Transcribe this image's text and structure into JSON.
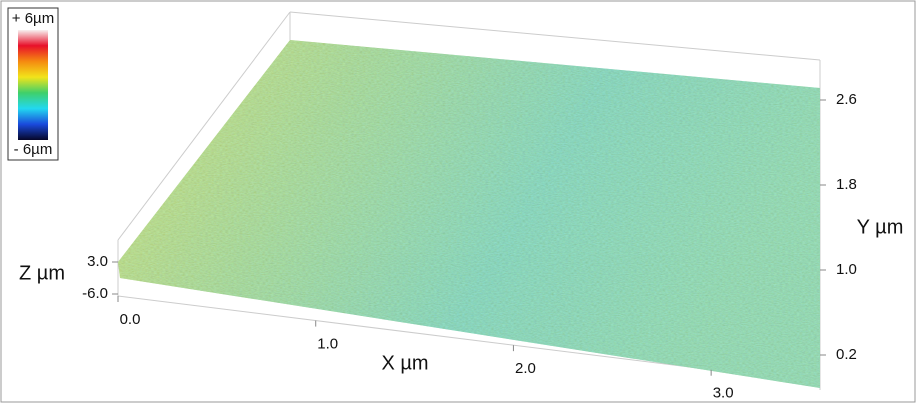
{
  "chart_data": {
    "type": "surface3d",
    "x_label": "X µm",
    "y_label": "Y µm",
    "z_label": "Z µm",
    "xlim": [
      0,
      3.5
    ],
    "xticks": [
      {
        "value": 0,
        "label": "0.0"
      },
      {
        "value": 1,
        "label": "1.0"
      },
      {
        "value": 2,
        "label": "2.0"
      },
      {
        "value": 3,
        "label": "3.0"
      }
    ],
    "ylim": [
      0.2,
      2.6
    ],
    "yticks": [
      0.2,
      {
        "value": 1,
        "label": "1.0"
      },
      1.8,
      2.6
    ],
    "zlim": [
      -6,
      3
    ],
    "zticks": [
      {
        "value": 3,
        "label": "3.0"
      },
      {
        "value": -6,
        "label": "-6.0"
      }
    ],
    "colorbar": {
      "max": {
        "value": 6,
        "label": "+ 6µm"
      },
      "min": {
        "value": -6,
        "label": "- 6µm"
      },
      "colors": [
        "#f8f0f0",
        "#e8102a",
        "#f58a10",
        "#f2e41a",
        "#3fd06a",
        "#22d8f0",
        "#1a4adc",
        "#060628"
      ]
    },
    "surface_colors": [
      "#c8d84a",
      "#8fd07a",
      "#5ccbb0",
      "#6fd0a0"
    ]
  }
}
